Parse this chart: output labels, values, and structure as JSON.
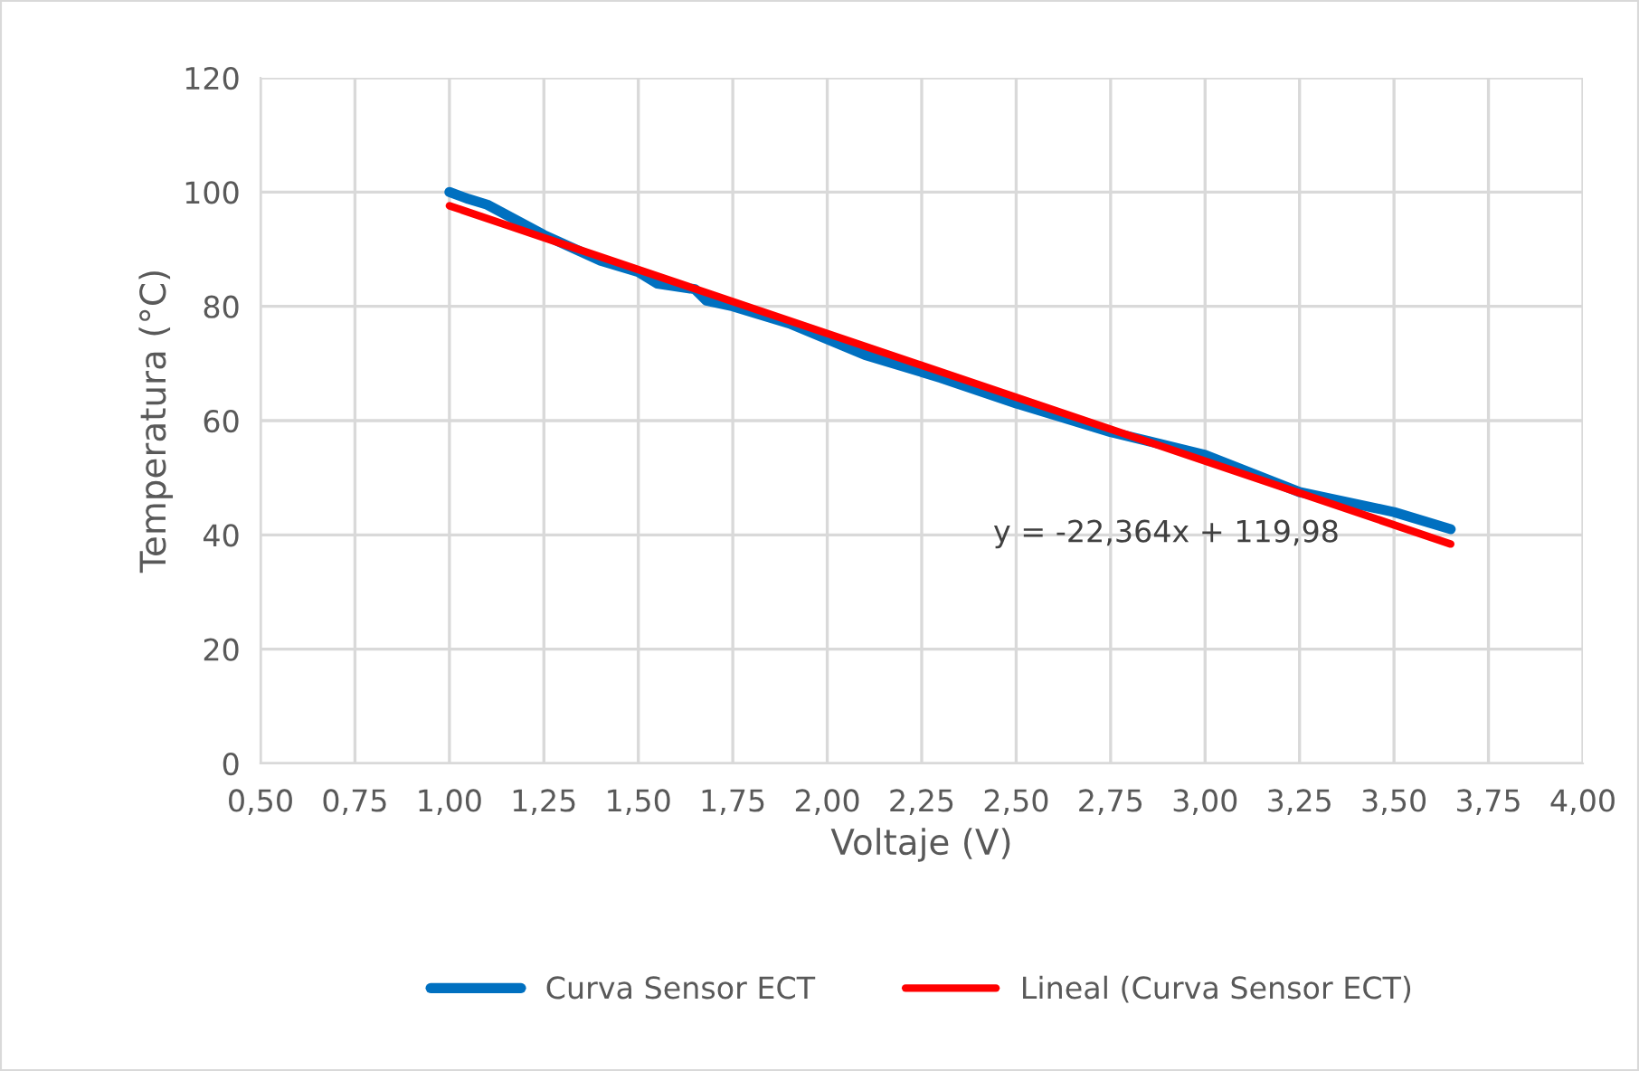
{
  "chart_data": {
    "type": "line",
    "xlabel": "Voltaje (V)",
    "ylabel": "Temperatura (°C)",
    "series": [
      {
        "name": "Curva Sensor ECT",
        "color": "#0070c0",
        "x": [
          1.0,
          1.05,
          1.1,
          1.25,
          1.4,
          1.5,
          1.55,
          1.65,
          1.68,
          1.75,
          1.9,
          2.1,
          2.3,
          2.5,
          2.75,
          3.0,
          3.25,
          3.5,
          3.65
        ],
        "values": [
          100,
          98.8,
          97.8,
          92.5,
          88,
          86,
          84,
          83,
          81,
          80,
          77,
          71.5,
          67.5,
          63,
          58,
          54,
          47.5,
          44,
          41
        ]
      },
      {
        "name": "Lineal (Curva Sensor ECT)",
        "color": "#ff0000",
        "x": [
          1.0,
          3.65
        ],
        "values": [
          97.6,
          38.4
        ]
      }
    ],
    "annotations": [
      "y = -22,364x + 119,98"
    ],
    "xlim": [
      0.5,
      4.0
    ],
    "xticks": [
      {
        "value": 0.5,
        "label": "0,50"
      },
      {
        "value": 0.75,
        "label": "0,75"
      },
      {
        "value": 1.0,
        "label": "1,00"
      },
      {
        "value": 1.25,
        "label": "1,25"
      },
      {
        "value": 1.5,
        "label": "1,50"
      },
      {
        "value": 1.75,
        "label": "1,75"
      },
      {
        "value": 2.0,
        "label": "2,00"
      },
      {
        "value": 2.25,
        "label": "2,25"
      },
      {
        "value": 2.5,
        "label": "2,50"
      },
      {
        "value": 2.75,
        "label": "2,75"
      },
      {
        "value": 3.0,
        "label": "3,00"
      },
      {
        "value": 3.25,
        "label": "3,25"
      },
      {
        "value": 3.5,
        "label": "3,50"
      },
      {
        "value": 3.75,
        "label": "3,75"
      },
      {
        "value": 4.0,
        "label": "4,00"
      }
    ],
    "ylim": [
      0,
      120
    ],
    "yticks": [
      0,
      20,
      40,
      60,
      80,
      100,
      120
    ],
    "grid": true,
    "legend": "bottom",
    "marker": "none",
    "line_style": "solid"
  }
}
